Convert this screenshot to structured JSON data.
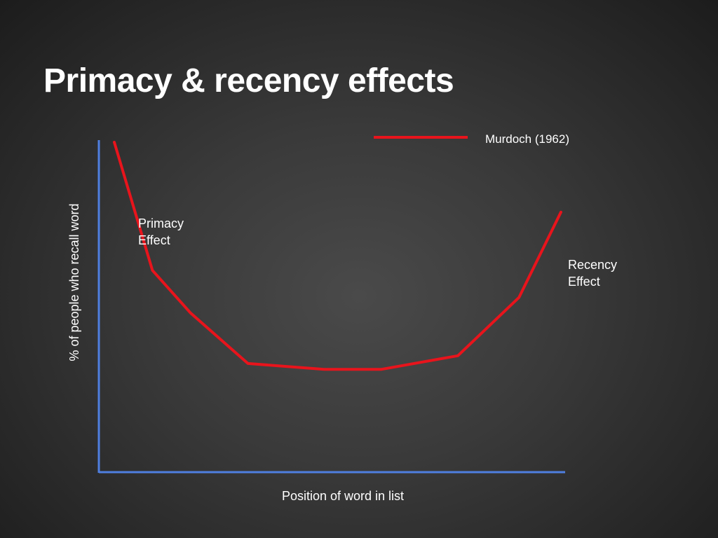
{
  "slide": {
    "title": "Primacy & recency effects"
  },
  "chart_data": {
    "type": "line",
    "title": "",
    "xlabel": "Position of word in list",
    "ylabel": "% of people who recall word",
    "x": [
      1,
      2,
      3,
      4,
      5,
      6,
      7,
      8,
      9,
      10
    ],
    "xlim": [
      0.5,
      12.7
    ],
    "ylim": [
      0,
      100
    ],
    "grid": false,
    "legend_placement": "top-right",
    "series": [
      {
        "name": "Murdoch (1962)",
        "values": [
          85,
          52,
          41,
          28,
          26.5,
          26.5,
          30,
          45,
          67
        ],
        "x": [
          1,
          2,
          3,
          4.5,
          6.5,
          8,
          10,
          11.6,
          12.7
        ],
        "color": "#e8141c"
      }
    ],
    "annotations": [
      {
        "id": "primacy",
        "lines": [
          "Primacy",
          "Effect"
        ]
      },
      {
        "id": "recency",
        "lines": [
          "Recency",
          "Effect"
        ]
      }
    ],
    "axis_color": "#4f7fe0"
  }
}
